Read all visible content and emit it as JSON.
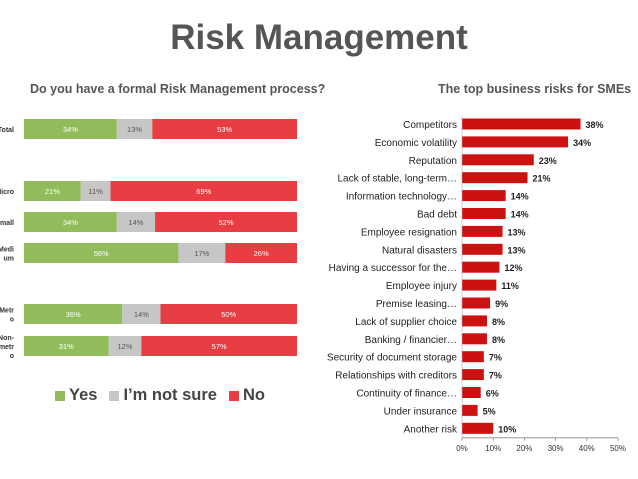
{
  "page": {
    "title": "Risk Management"
  },
  "legend": {
    "yes": "Yes",
    "not_sure": "I’m not sure",
    "no": "No"
  },
  "colors": {
    "yes": "#92bb5b",
    "not_sure": "#c6c6c6",
    "no": "#e83e43",
    "risk_bar": "#cc1111"
  },
  "chart_data": [
    {
      "type": "bar",
      "orientation": "horizontal",
      "stacked": true,
      "title": "Do you have a formal Risk Management process?",
      "categories": [
        "Total",
        "Micro",
        "Small",
        "Medi um",
        "Metr o",
        "Non- metr o"
      ],
      "series": [
        {
          "name": "Yes",
          "values": [
            34,
            21,
            34,
            56,
            36,
            31
          ],
          "labels": [
            "34%",
            "21%",
            "34%",
            "56%",
            "36%",
            "31%"
          ]
        },
        {
          "name": "I’m not sure",
          "values": [
            13,
            11,
            14,
            17,
            14,
            12
          ],
          "labels": [
            "13%",
            "11%",
            "14%",
            "17%",
            "14%",
            "12%"
          ]
        },
        {
          "name": "No",
          "values": [
            53,
            69,
            52,
            26,
            50,
            57
          ],
          "labels": [
            "53%",
            "69%",
            "52%",
            "26%",
            "50%",
            "57%"
          ]
        }
      ],
      "legend_position": "bottom-left"
    },
    {
      "type": "bar",
      "orientation": "horizontal",
      "title": "The top business risks for SMEs",
      "categories": [
        "Competitors",
        "Economic volatility",
        "Reputation",
        "Lack of stable, long-term…",
        "Information technology…",
        "Bad debt",
        "Employee resignation",
        "Natural disasters",
        "Having a successor for the…",
        "Employee injury",
        "Premise leasing…",
        "Lack of supplier choice",
        "Banking / financier…",
        "Security of document storage",
        "Relationships with creditors",
        "Continuity of finance…",
        "Under insurance",
        "Another risk"
      ],
      "values": [
        38,
        34,
        23,
        21,
        14,
        14,
        13,
        13,
        12,
        11,
        9,
        8,
        8,
        7,
        7,
        6,
        5,
        10
      ],
      "value_labels": [
        "38%",
        "34%",
        "23%",
        "21%",
        "14%",
        "14%",
        "13%",
        "13%",
        "12%",
        "11%",
        "9%",
        "8%",
        "8%",
        "7%",
        "7%",
        "6%",
        "5%",
        "10%"
      ],
      "x_ticks": [
        "0%",
        "10%",
        "20%",
        "30%",
        "40%",
        "50%"
      ],
      "xlim": [
        0,
        50
      ],
      "grid": false
    }
  ]
}
